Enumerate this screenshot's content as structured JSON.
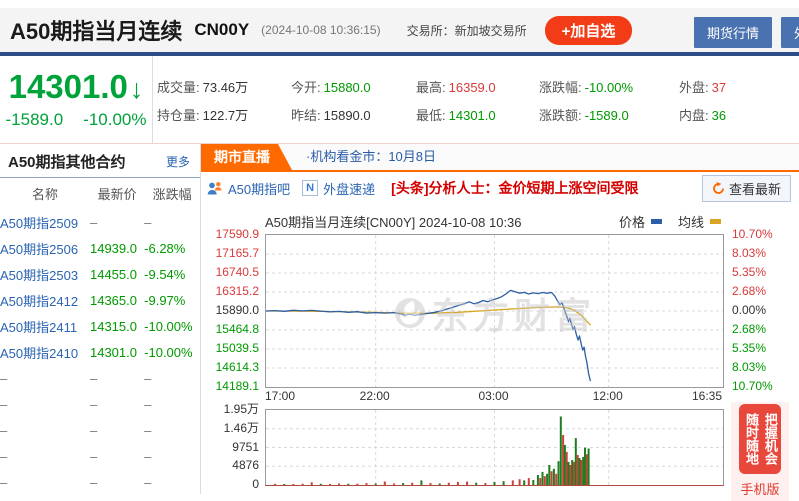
{
  "header": {
    "title": "A50期指当月连续",
    "code": "CN00Y",
    "timestamp": "(2024-10-08 10:36:15)",
    "exchange_label": "交易所：",
    "exchange": "新加坡交易所",
    "add_watchlist": "+加自选",
    "buttons": [
      "期货行情",
      "外汇行情"
    ]
  },
  "quote": {
    "price": "14301.0",
    "arrow": "↓",
    "change": "-1589.0",
    "change_pct": "-10.00%",
    "stats": [
      {
        "label": "成交量:",
        "value": "73.46万",
        "color": "dark"
      },
      {
        "label": "持仓量:",
        "value": "122.7万",
        "color": "dark"
      },
      {
        "label": "今开:",
        "value": "15880.0",
        "color": "green"
      },
      {
        "label": "昨结:",
        "value": "15890.0",
        "color": "dark"
      },
      {
        "label": "最高:",
        "value": "16359.0",
        "color": "red"
      },
      {
        "label": "最低:",
        "value": "14301.0",
        "color": "green"
      },
      {
        "label": "涨跌幅:",
        "value": "-10.00%",
        "color": "green"
      },
      {
        "label": "涨跌额:",
        "value": "-1589.0",
        "color": "green"
      },
      {
        "label": "外盘:",
        "value": "37",
        "color": "red"
      },
      {
        "label": "内盘:",
        "value": "36",
        "color": "green"
      }
    ]
  },
  "sidebar": {
    "title": "A50期指其他合约",
    "more": "更多",
    "columns": [
      "名称",
      "最新价",
      "涨跌幅"
    ],
    "rows": [
      {
        "name": "A50期指2509",
        "price": "–",
        "pct": "–"
      },
      {
        "name": "A50期指2506",
        "price": "14939.0",
        "pct": "-6.28%"
      },
      {
        "name": "A50期指2503",
        "price": "14455.0",
        "pct": "-9.54%"
      },
      {
        "name": "A50期指2412",
        "price": "14365.0",
        "pct": "-9.97%"
      },
      {
        "name": "A50期指2411",
        "price": "14315.0",
        "pct": "-10.00%"
      },
      {
        "name": "A50期指2410",
        "price": "14301.0",
        "pct": "-10.00%"
      },
      {
        "name": "–",
        "price": "–",
        "pct": "–"
      },
      {
        "name": "–",
        "price": "–",
        "pct": "–"
      },
      {
        "name": "–",
        "price": "–",
        "pct": "–"
      },
      {
        "name": "–",
        "price": "–",
        "pct": "–"
      },
      {
        "name": "–",
        "price": "–",
        "pct": "–"
      }
    ]
  },
  "tabs": {
    "active": "期市直播",
    "link": "·机构看金市：10月8日"
  },
  "newsbar": {
    "bar_link": "A50期指吧",
    "fast_link": "外盘速递",
    "headline": "[头条]分析人士：金价短期上涨空间受限",
    "refresh": "查看最新"
  },
  "watermark": "东方财富",
  "banner": {
    "col_right": "把握机会",
    "col_left": "随时随地",
    "bottom": "手机版"
  },
  "chart_data": {
    "type": "line",
    "title": "A50期指当月连续[CN00Y]  2024-10-08 10:36",
    "legend": [
      {
        "name": "价格",
        "color": "#2b5ea7"
      },
      {
        "name": "均线",
        "color": "#d9a41f"
      }
    ],
    "legend_position": "top-right",
    "grid": true,
    "x_ticks": [
      "17:00",
      "22:00",
      "03:00",
      "12:00",
      "16:35"
    ],
    "x_tick_pos": [
      0,
      0.24,
      0.5,
      0.75,
      1.0
    ],
    "grid_v_pos": [
      0.24,
      0.5,
      0.75
    ],
    "left_axis_labels": [
      "17590.9",
      "17165.7",
      "16740.5",
      "16315.2",
      "15890.0",
      "15464.8",
      "15039.5",
      "14614.3",
      "14189.1"
    ],
    "right_axis_labels": [
      "10.70%",
      "8.03%",
      "5.35%",
      "2.68%",
      "0.00%",
      "2.68%",
      "5.35%",
      "8.03%",
      "10.70%"
    ],
    "axis_label_colors": [
      "#d93a3a",
      "#d93a3a",
      "#d93a3a",
      "#d93a3a",
      "#333333",
      "#009900",
      "#009900",
      "#009900",
      "#009900"
    ],
    "pct_max": 10.7,
    "prev_close": 15890.0,
    "open": 15880.0,
    "high": 16359.0,
    "low": 14301.0,
    "last": 14301.0,
    "price_color": "#2b5ea7",
    "ma_color": "#d9a41f",
    "price_series": [
      [
        0,
        0
      ],
      [
        0.02,
        0.06
      ],
      [
        0.04,
        -0.04
      ],
      [
        0.06,
        0.1
      ],
      [
        0.08,
        0.02
      ],
      [
        0.1,
        0.08
      ],
      [
        0.12,
        -0.02
      ],
      [
        0.14,
        -0.12
      ],
      [
        0.16,
        -0.06
      ],
      [
        0.18,
        -0.18
      ],
      [
        0.2,
        -0.1
      ],
      [
        0.22,
        -0.3
      ],
      [
        0.24,
        -0.22
      ],
      [
        0.26,
        -0.3
      ],
      [
        0.28,
        -0.22
      ],
      [
        0.295,
        -0.42
      ],
      [
        0.305,
        -0.58
      ],
      [
        0.315,
        -0.44
      ],
      [
        0.325,
        -0.6
      ],
      [
        0.34,
        -0.48
      ],
      [
        0.355,
        -0.32
      ],
      [
        0.37,
        -0.18
      ],
      [
        0.385,
        0.05
      ],
      [
        0.4,
        0.35
      ],
      [
        0.415,
        0.65
      ],
      [
        0.43,
        0.95
      ],
      [
        0.445,
        1.3
      ],
      [
        0.455,
        1.02
      ],
      [
        0.465,
        1.18
      ],
      [
        0.475,
        1.48
      ],
      [
        0.485,
        1.3
      ],
      [
        0.495,
        1.55
      ],
      [
        0.505,
        1.75
      ],
      [
        0.515,
        2.0
      ],
      [
        0.525,
        2.4
      ],
      [
        0.535,
        2.9
      ],
      [
        0.545,
        2.7
      ],
      [
        0.555,
        2.5
      ],
      [
        0.565,
        2.62
      ],
      [
        0.575,
        2.4
      ],
      [
        0.585,
        2.55
      ],
      [
        0.595,
        2.45
      ],
      [
        0.605,
        2.6
      ],
      [
        0.615,
        2.5
      ],
      [
        0.625,
        2.6
      ],
      [
        0.632,
        2.1
      ],
      [
        0.638,
        1.4
      ],
      [
        0.643,
        0.9
      ],
      [
        0.648,
        1.15
      ],
      [
        0.653,
        0.2
      ],
      [
        0.658,
        -0.7
      ],
      [
        0.662,
        -1.5
      ],
      [
        0.665,
        -1.0
      ],
      [
        0.669,
        -2.0
      ],
      [
        0.672,
        -2.6
      ],
      [
        0.675,
        -2.2
      ],
      [
        0.679,
        -3.3
      ],
      [
        0.683,
        -4.1
      ],
      [
        0.686,
        -3.5
      ],
      [
        0.69,
        -4.7
      ],
      [
        0.693,
        -5.5
      ],
      [
        0.696,
        -5.1
      ],
      [
        0.699,
        -6.3
      ],
      [
        0.702,
        -7.2
      ],
      [
        0.704,
        -8.0
      ],
      [
        0.706,
        -8.8
      ],
      [
        0.708,
        -9.4
      ],
      [
        0.71,
        -9.87
      ]
    ],
    "ma_series": [
      [
        0,
        0
      ],
      [
        0.06,
        -0.02
      ],
      [
        0.12,
        -0.05
      ],
      [
        0.18,
        -0.12
      ],
      [
        0.24,
        -0.2
      ],
      [
        0.3,
        -0.3
      ],
      [
        0.36,
        -0.32
      ],
      [
        0.42,
        -0.18
      ],
      [
        0.48,
        0.05
      ],
      [
        0.54,
        0.3
      ],
      [
        0.6,
        0.5
      ],
      [
        0.64,
        0.58
      ],
      [
        0.66,
        0.45
      ],
      [
        0.675,
        0.1
      ],
      [
        0.69,
        -0.6
      ],
      [
        0.7,
        -1.3
      ],
      [
        0.71,
        -2.0
      ]
    ],
    "volume_axis_labels": [
      "1.95万",
      "1.46万",
      "9751",
      "4876",
      "0"
    ],
    "volume_max": 19503,
    "volume_up_color": "#1e7d1e",
    "volume_down_color": "#c9423a",
    "volume_bars": [
      [
        0.02,
        300,
        "r"
      ],
      [
        0.04,
        250,
        "g"
      ],
      [
        0.06,
        200,
        "r"
      ],
      [
        0.08,
        350,
        "r"
      ],
      [
        0.1,
        700,
        "r"
      ],
      [
        0.12,
        300,
        "g"
      ],
      [
        0.14,
        250,
        "r"
      ],
      [
        0.16,
        400,
        "r"
      ],
      [
        0.18,
        300,
        "g"
      ],
      [
        0.2,
        350,
        "r"
      ],
      [
        0.22,
        500,
        "r"
      ],
      [
        0.24,
        400,
        "g"
      ],
      [
        0.26,
        900,
        "r"
      ],
      [
        0.28,
        400,
        "r"
      ],
      [
        0.3,
        500,
        "g"
      ],
      [
        0.32,
        600,
        "r"
      ],
      [
        0.34,
        1200,
        "g"
      ],
      [
        0.36,
        500,
        "r"
      ],
      [
        0.38,
        400,
        "g"
      ],
      [
        0.4,
        600,
        "r"
      ],
      [
        0.42,
        800,
        "r"
      ],
      [
        0.44,
        900,
        "r"
      ],
      [
        0.46,
        600,
        "g"
      ],
      [
        0.48,
        500,
        "r"
      ],
      [
        0.5,
        800,
        "g"
      ],
      [
        0.52,
        1000,
        "g"
      ],
      [
        0.54,
        1200,
        "r"
      ],
      [
        0.555,
        1500,
        "r"
      ],
      [
        0.565,
        1200,
        "g"
      ],
      [
        0.575,
        1800,
        "r"
      ],
      [
        0.585,
        1300,
        "g"
      ],
      [
        0.595,
        2600,
        "g"
      ],
      [
        0.6,
        1800,
        "r"
      ],
      [
        0.605,
        3400,
        "g"
      ],
      [
        0.61,
        2300,
        "r"
      ],
      [
        0.615,
        2900,
        "g"
      ],
      [
        0.62,
        5200,
        "g"
      ],
      [
        0.625,
        3600,
        "r"
      ],
      [
        0.63,
        4200,
        "g"
      ],
      [
        0.635,
        2900,
        "r"
      ],
      [
        0.64,
        6200,
        "g"
      ],
      [
        0.645,
        17800,
        "g"
      ],
      [
        0.65,
        13000,
        "r"
      ],
      [
        0.654,
        10400,
        "g"
      ],
      [
        0.658,
        8600,
        "r"
      ],
      [
        0.662,
        6000,
        "g"
      ],
      [
        0.666,
        5200,
        "r"
      ],
      [
        0.67,
        6500,
        "g"
      ],
      [
        0.674,
        6000,
        "r"
      ],
      [
        0.678,
        12200,
        "g"
      ],
      [
        0.682,
        7800,
        "r"
      ],
      [
        0.686,
        7000,
        "g"
      ],
      [
        0.69,
        6500,
        "r"
      ],
      [
        0.694,
        7300,
        "g"
      ],
      [
        0.698,
        9700,
        "g"
      ],
      [
        0.702,
        8000,
        "r"
      ],
      [
        0.706,
        9500,
        "g"
      ]
    ]
  }
}
